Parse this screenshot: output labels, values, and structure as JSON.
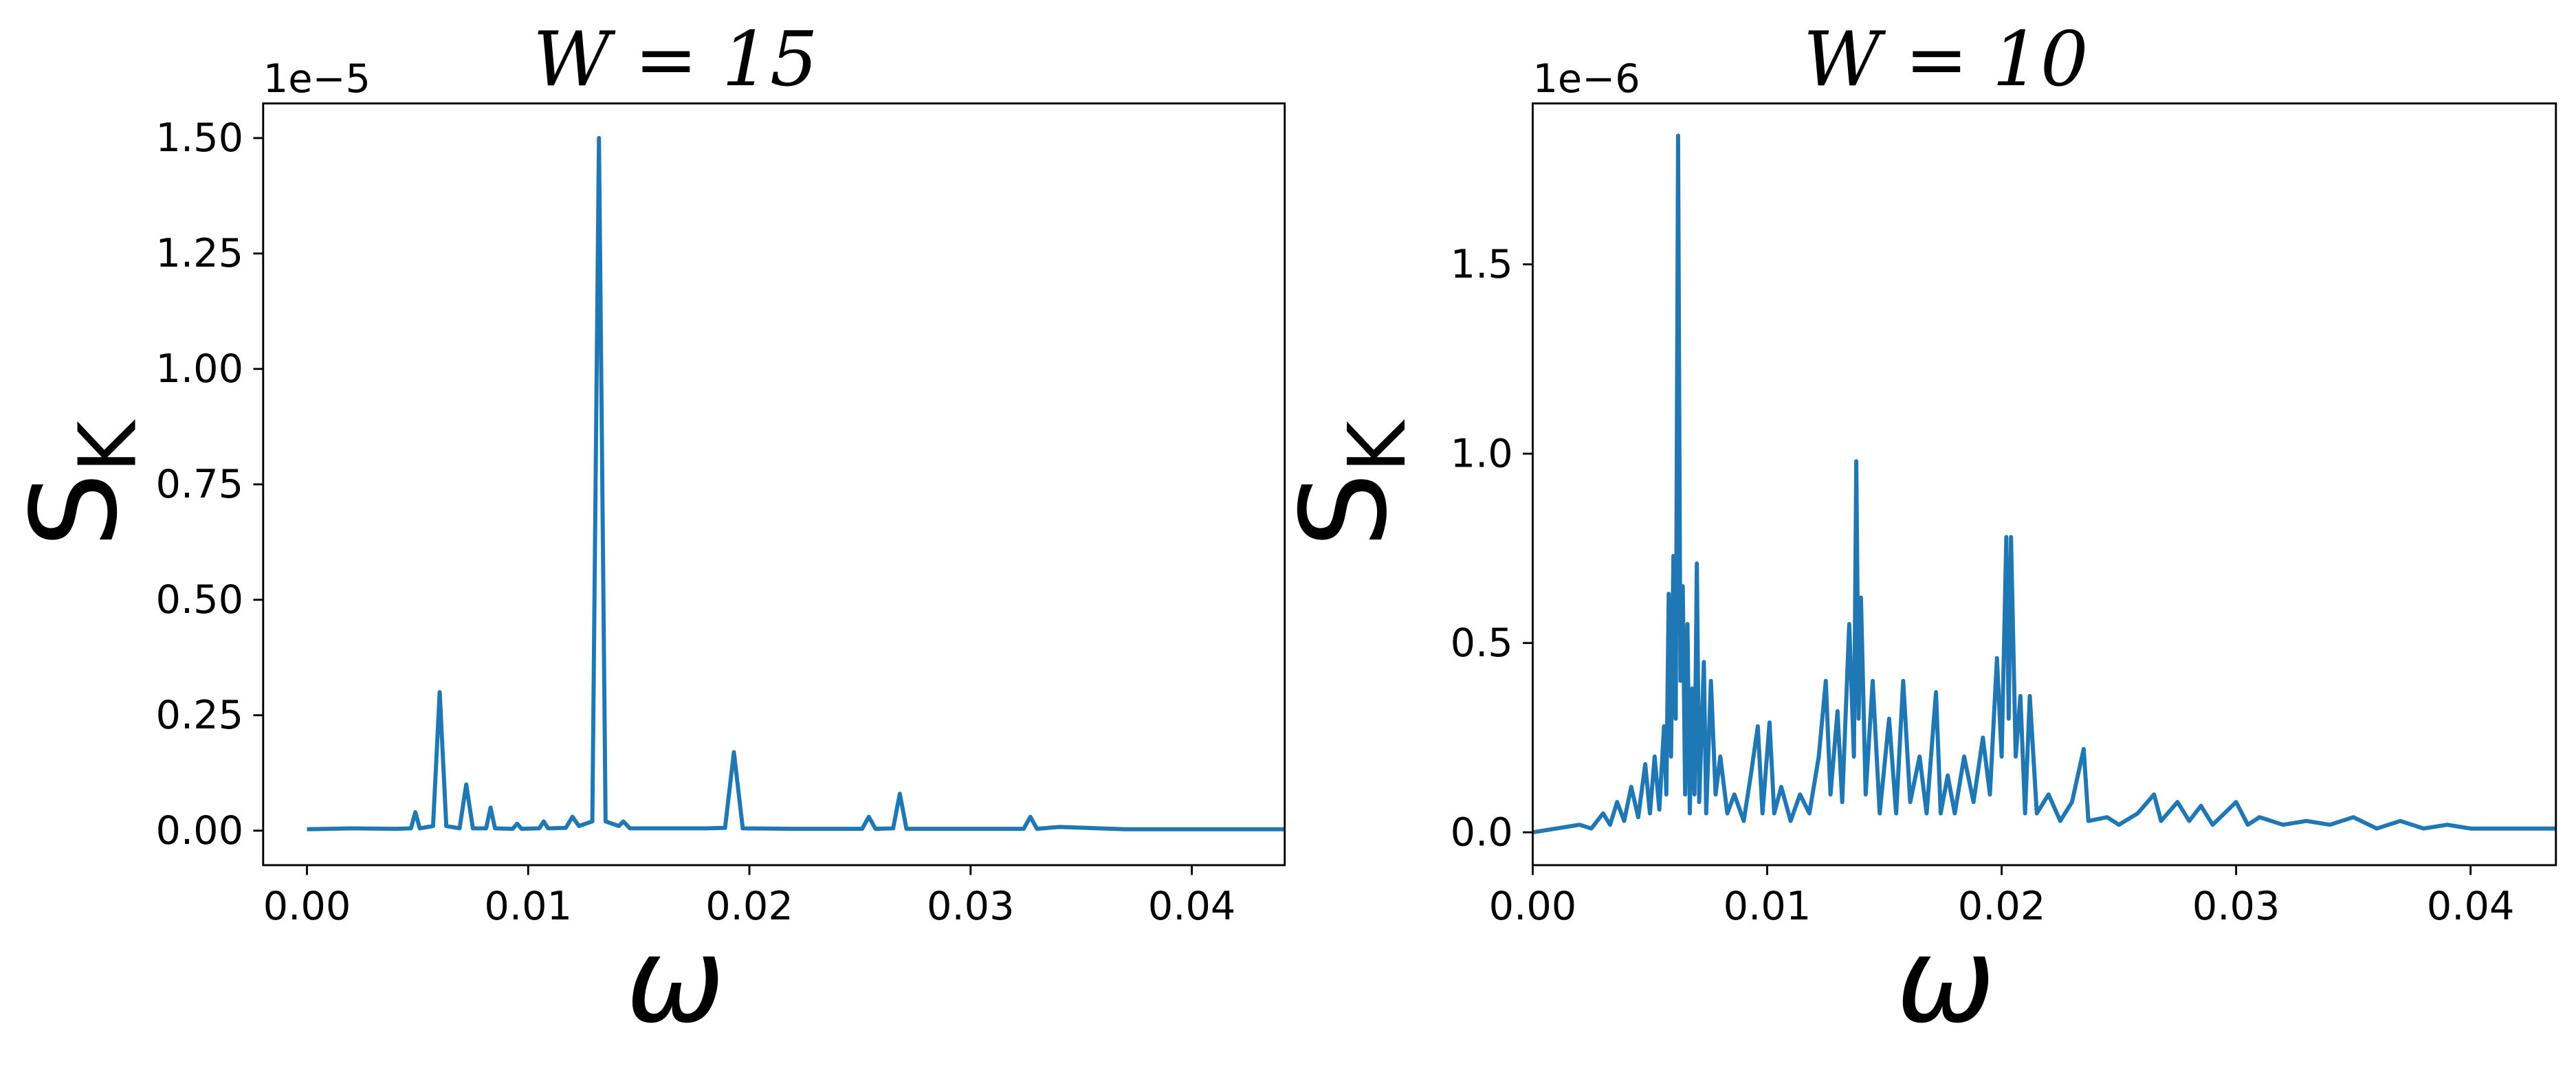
{
  "chart_data": [
    {
      "type": "line",
      "title": "W = 15",
      "x_label": "ω",
      "y_label": "S",
      "y_label_sub": "K",
      "y_offset": "1e−5",
      "xlim": [
        -0.00198,
        0.0442
      ],
      "ylim": [
        -0.0747,
        1.575
      ],
      "xticks": [
        {
          "value": 0,
          "label": "0.00"
        },
        0.01,
        0.02,
        0.03,
        0.04
      ],
      "yticks": [
        {
          "value": 0,
          "label": "0.00"
        },
        0.25,
        {
          "value": 0.5,
          "label": "0.50"
        },
        0.75,
        {
          "value": 1,
          "label": "1.00"
        },
        1.25,
        {
          "value": 1.5,
          "label": "1.50"
        }
      ],
      "series": [
        {
          "color": "#1f77b4",
          "x": [
            0,
            0.002,
            0.004,
            0.0047,
            0.0049,
            0.0051,
            0.0057,
            0.006,
            0.0063,
            0.0069,
            0.0072,
            0.0075,
            0.0081,
            0.0083,
            0.0085,
            0.0093,
            0.0095,
            0.0097,
            0.0105,
            0.0107,
            0.0109,
            0.0117,
            0.012,
            0.0123,
            0.0129,
            0.0132,
            0.0135,
            0.0141,
            0.0143,
            0.0146,
            0.016,
            0.018,
            0.0189,
            0.0193,
            0.0197,
            0.022,
            0.0251,
            0.0254,
            0.0257,
            0.0265,
            0.0268,
            0.0271,
            0.03,
            0.0324,
            0.0327,
            0.033,
            0.034,
            0.037,
            0.04,
            0.0442
          ],
          "values": [
            0.003,
            0.005,
            0.004,
            0.005,
            0.04,
            0.005,
            0.01,
            0.3,
            0.01,
            0.005,
            0.1,
            0.005,
            0.005,
            0.05,
            0.005,
            0.004,
            0.015,
            0.004,
            0.005,
            0.02,
            0.005,
            0.006,
            0.03,
            0.01,
            0.02,
            1.5,
            0.02,
            0.01,
            0.02,
            0.005,
            0.005,
            0.005,
            0.006,
            0.17,
            0.005,
            0.004,
            0.004,
            0.03,
            0.004,
            0.005,
            0.08,
            0.004,
            0.004,
            0.004,
            0.03,
            0.004,
            0.008,
            0.003,
            0.003,
            0.003
          ]
        }
      ]
    },
    {
      "type": "line",
      "title": "W = 10",
      "x_label": "ω",
      "y_label": "S",
      "y_label_sub": "K",
      "y_offset": "1e−6",
      "xlim": [
        0,
        0.04364
      ],
      "ylim": [
        -0.0867,
        1.925
      ],
      "xticks": [
        {
          "value": 0,
          "label": "0.00"
        },
        0.01,
        0.02,
        0.03,
        0.04
      ],
      "yticks": [
        {
          "value": 0,
          "label": "0.0"
        },
        0.5,
        {
          "value": 1,
          "label": "1.0"
        },
        1.5
      ],
      "series": [
        {
          "color": "#1f77b4",
          "x": [
            0,
            0.001,
            0.002,
            0.0025,
            0.003,
            0.0033,
            0.0036,
            0.0039,
            0.0042,
            0.0045,
            0.0048,
            0.005,
            0.0052,
            0.0054,
            0.0056,
            0.0057,
            0.0058,
            0.0059,
            0.006,
            0.0061,
            0.0062,
            0.0063,
            0.0064,
            0.0065,
            0.0066,
            0.0067,
            0.0068,
            0.0069,
            0.007,
            0.0071,
            0.0073,
            0.0074,
            0.0076,
            0.0078,
            0.008,
            0.0083,
            0.0086,
            0.009,
            0.0093,
            0.0096,
            0.0098,
            0.0101,
            0.0103,
            0.0106,
            0.011,
            0.0114,
            0.0118,
            0.0122,
            0.0125,
            0.0127,
            0.013,
            0.0132,
            0.0135,
            0.0137,
            0.0138,
            0.0139,
            0.014,
            0.0142,
            0.0145,
            0.0148,
            0.0152,
            0.0155,
            0.0158,
            0.0161,
            0.0165,
            0.0168,
            0.0172,
            0.0174,
            0.0177,
            0.018,
            0.0184,
            0.0188,
            0.0192,
            0.0195,
            0.0198,
            0.02,
            0.0202,
            0.0203,
            0.0204,
            0.0206,
            0.0208,
            0.021,
            0.0212,
            0.0215,
            0.022,
            0.0225,
            0.023,
            0.0235,
            0.0237,
            0.0245,
            0.025,
            0.0258,
            0.0265,
            0.0268,
            0.0275,
            0.028,
            0.0285,
            0.029,
            0.03,
            0.0305,
            0.031,
            0.032,
            0.033,
            0.034,
            0.035,
            0.036,
            0.037,
            0.038,
            0.039,
            0.04,
            0.042,
            0.0436
          ],
          "values": [
            0,
            0.01,
            0.02,
            0.01,
            0.05,
            0.02,
            0.08,
            0.03,
            0.12,
            0.04,
            0.18,
            0.05,
            0.2,
            0.06,
            0.28,
            0.1,
            0.63,
            0.2,
            0.73,
            0.3,
            1.84,
            0.4,
            0.65,
            0.1,
            0.55,
            0.05,
            0.38,
            0.1,
            0.71,
            0.08,
            0.45,
            0.05,
            0.4,
            0.1,
            0.2,
            0.05,
            0.1,
            0.03,
            0.15,
            0.28,
            0.05,
            0.29,
            0.05,
            0.12,
            0.03,
            0.1,
            0.05,
            0.2,
            0.4,
            0.1,
            0.32,
            0.08,
            0.55,
            0.2,
            0.98,
            0.3,
            0.62,
            0.1,
            0.4,
            0.05,
            0.3,
            0.05,
            0.4,
            0.08,
            0.2,
            0.05,
            0.37,
            0.05,
            0.15,
            0.05,
            0.2,
            0.08,
            0.25,
            0.1,
            0.46,
            0.2,
            0.78,
            0.3,
            0.78,
            0.2,
            0.36,
            0.05,
            0.36,
            0.05,
            0.1,
            0.03,
            0.08,
            0.22,
            0.03,
            0.04,
            0.02,
            0.05,
            0.1,
            0.03,
            0.08,
            0.03,
            0.07,
            0.02,
            0.08,
            0.02,
            0.04,
            0.02,
            0.03,
            0.02,
            0.04,
            0.01,
            0.03,
            0.01,
            0.02,
            0.01,
            0.01,
            0.01
          ]
        }
      ]
    }
  ]
}
